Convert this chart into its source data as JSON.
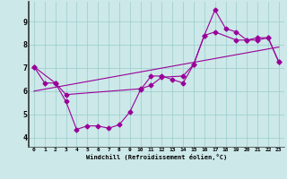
{
  "xlabel": "Windchill (Refroidissement éolien,°C)",
  "background_color": "#cce8e8",
  "line_color": "#990099",
  "xlim": [
    -0.5,
    23.5
  ],
  "ylim": [
    3.6,
    9.85
  ],
  "yticks": [
    4,
    5,
    6,
    7,
    8,
    9
  ],
  "xticks": [
    0,
    1,
    2,
    3,
    4,
    5,
    6,
    7,
    8,
    9,
    10,
    11,
    12,
    13,
    14,
    15,
    16,
    17,
    18,
    19,
    20,
    21,
    22,
    23
  ],
  "line1_x": [
    0,
    1,
    2,
    3,
    4,
    5,
    6,
    7,
    8,
    9,
    10,
    11,
    12,
    13,
    14,
    15,
    16,
    17,
    18,
    19,
    20,
    21,
    22,
    23
  ],
  "line1_y": [
    7.05,
    6.35,
    6.35,
    5.55,
    4.35,
    4.5,
    4.5,
    4.4,
    4.55,
    5.1,
    6.05,
    6.65,
    6.65,
    6.5,
    6.35,
    7.15,
    8.4,
    9.5,
    8.7,
    8.55,
    8.2,
    8.2,
    8.3,
    7.25
  ],
  "line2_x": [
    0,
    2,
    3,
    10,
    11,
    12,
    14,
    15,
    16,
    17,
    19,
    20,
    21,
    22,
    23
  ],
  "line2_y": [
    7.05,
    6.35,
    5.85,
    6.1,
    6.25,
    6.6,
    6.65,
    7.15,
    8.4,
    8.55,
    8.2,
    8.2,
    8.3,
    8.3,
    7.25
  ],
  "line3_x": [
    0,
    23
  ],
  "line3_y": [
    6.0,
    7.9
  ],
  "grid_color": "#99cccc",
  "marker": "D",
  "markersize": 2.5,
  "linewidth": 0.8
}
